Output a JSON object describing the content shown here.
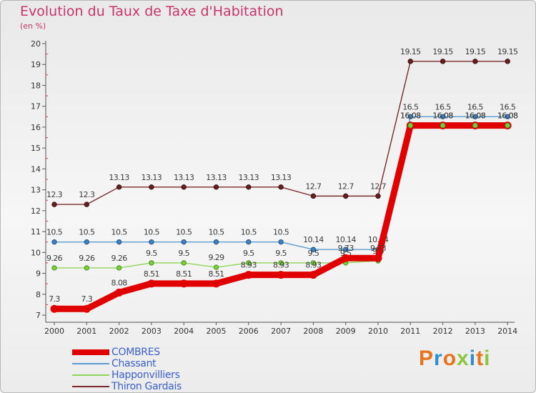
{
  "title": "Evolution du Taux de Taxe d'Habitation",
  "subtitle": "(en %)",
  "brand": "Proxiti",
  "chart_data": {
    "type": "line",
    "x": [
      "2000",
      "2001",
      "2002",
      "2003",
      "2004",
      "2005",
      "2006",
      "2007",
      "2008",
      "2009",
      "2010",
      "2011",
      "2012",
      "2013",
      "2014"
    ],
    "ylim": [
      7,
      20
    ],
    "yticks": [
      "7",
      "8",
      "9",
      "10",
      "11",
      "12",
      "13",
      "14",
      "15",
      "16",
      "17",
      "18",
      "19",
      "20"
    ],
    "grid": false,
    "legend_position": "bottom-left",
    "series": [
      {
        "name": "Thiron Gardais",
        "color": "#7a2a2a",
        "values": [
          12.3,
          12.3,
          13.13,
          13.13,
          13.13,
          13.13,
          13.13,
          13.13,
          12.7,
          12.7,
          12.7,
          19.15,
          19.15,
          19.15,
          19.15
        ],
        "labels": [
          "12.3",
          "12.3",
          "13.13",
          "13.13",
          "13.13",
          "13.13",
          "13.13",
          "13.13",
          "12.7",
          "12.7",
          "12.7",
          "19.15",
          "19.15",
          "19.15",
          "19.15"
        ]
      },
      {
        "name": "Chassant",
        "color": "#5a9ccf",
        "values": [
          10.5,
          10.5,
          10.5,
          10.5,
          10.5,
          10.5,
          10.5,
          10.5,
          10.14,
          10.14,
          10.14,
          16.5,
          16.5,
          16.5,
          16.5
        ],
        "labels": [
          "10.5",
          "10.5",
          "10.5",
          "10.5",
          "10.5",
          "10.5",
          "10.5",
          "10.5",
          "10.14",
          "10.14",
          "10.14",
          "16.5",
          "16.5",
          "16.5",
          "16.5"
        ]
      },
      {
        "name": "Happonvilliers",
        "color": "#8fd65a",
        "values": [
          9.26,
          9.26,
          9.26,
          9.5,
          9.5,
          9.29,
          9.5,
          9.5,
          9.5,
          9.5,
          9.6,
          16.08,
          16.08,
          16.08,
          16.08
        ],
        "labels": [
          "9.26",
          "9.26",
          "9.26",
          "9.5",
          "9.5",
          "9.29",
          "9.5",
          "9.5",
          "9.5",
          "9.5",
          "9.6",
          "16.08",
          "16.08",
          "16.08",
          "16.08"
        ]
      },
      {
        "name": "COMBRES",
        "color": "#e10000",
        "values": [
          7.3,
          7.3,
          8.08,
          8.51,
          8.51,
          8.51,
          8.93,
          8.93,
          8.93,
          9.73,
          9.73,
          16.08,
          16.08,
          16.08,
          16.08
        ],
        "labels": [
          "7.3",
          "7.3",
          "8.08",
          "8.51",
          "8.51",
          "8.51",
          "8.93",
          "8.93",
          "8.93",
          "9.73",
          "9.73",
          "16.08",
          "16.08",
          "16.08",
          "16.08"
        ]
      }
    ],
    "legend": [
      {
        "name": "COMBRES",
        "color": "#e10000",
        "label_color": "#3a5fcd"
      },
      {
        "name": "Chassant",
        "color": "#5a9ccf",
        "label_color": "#3a5fcd"
      },
      {
        "name": "Happonvilliers",
        "color": "#8fd65a",
        "label_color": "#3a5fcd"
      },
      {
        "name": "Thiron Gardais",
        "color": "#7a2a2a",
        "label_color": "#3a5fcd"
      }
    ]
  }
}
